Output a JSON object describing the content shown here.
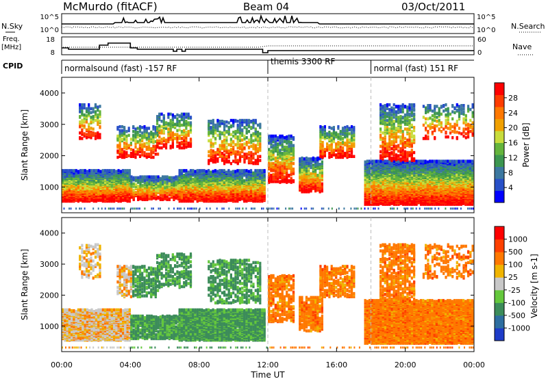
{
  "header": {
    "station": "McMurdo (fitACF)",
    "beam": "Beam 04",
    "date": "03/Oct/2011"
  },
  "side_labels": {
    "n_sky": "N.Sky",
    "n_search": "N.Search",
    "freq": "Freq.",
    "mhz": "[MHz]",
    "nave": "Nave",
    "cpid": "CPID"
  },
  "noise_axis": {
    "left_top": "10^5",
    "left_bottom": "10^0",
    "right_top": "10^5",
    "right_bottom": "10^0"
  },
  "freq_axis": {
    "left_top": "18",
    "left_bottom": "8",
    "right_top": "60",
    "right_bottom": "0"
  },
  "cpid_segments": [
    {
      "label": "normalsound (fast) -157 RF",
      "start_hour": 0
    },
    {
      "label": "themis 3300 RF",
      "start_hour": 12
    },
    {
      "label": "normal (fast) 151 RF",
      "start_hour": 18
    }
  ],
  "time_axis": {
    "xlabel": "Time UT",
    "ticks": [
      "00:00",
      "04:00",
      "08:00",
      "12:00",
      "16:00",
      "20:00",
      "00:00"
    ]
  },
  "chart_data": [
    {
      "type": "heatmap",
      "quantity": "Power",
      "xlabel": "Time UT",
      "ylabel": "Slant Range [km]",
      "xlim_hours": [
        0,
        24
      ],
      "ylim_km": [
        180,
        4500
      ],
      "yticks": [
        "1000",
        "2000",
        "3000",
        "4000"
      ],
      "colorbar": {
        "label": "Power [dB]",
        "ticks": [
          "28",
          "24",
          "20",
          "16",
          "12",
          "8",
          "4"
        ],
        "colors": [
          "#0000ff",
          "#2850c8",
          "#3c78a0",
          "#3c9650",
          "#64b43c",
          "#c8dc3c",
          "#f0a000",
          "#ff7800",
          "#ff3c00",
          "#ff0000"
        ]
      }
    },
    {
      "type": "heatmap",
      "quantity": "Velocity",
      "xlabel": "Time UT",
      "ylabel": "Slant Range [km]",
      "xlim_hours": [
        0,
        24
      ],
      "ylim_km": [
        180,
        4500
      ],
      "yticks": [
        "1000",
        "2000",
        "3000",
        "4000"
      ],
      "colorbar": {
        "label": "Velocity [m s-1]",
        "ticks": [
          "1000",
          "500",
          "100",
          "25",
          "-25",
          "-100",
          "-500",
          "-1000"
        ],
        "colors": [
          "#1e3cc8",
          "#2e6ea0",
          "#3c8c5a",
          "#64c83c",
          "#c8c8c8",
          "#f0b400",
          "#ff7800",
          "#ff4000",
          "#ff0000"
        ]
      }
    }
  ]
}
